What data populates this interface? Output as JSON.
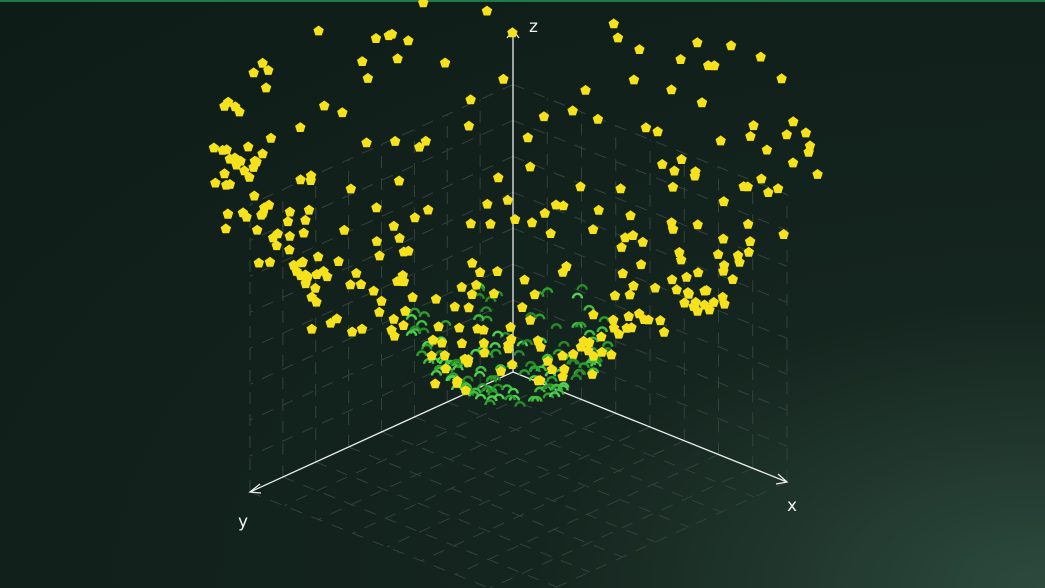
{
  "chart_data": {
    "type": "scatter",
    "projection": "3d",
    "title": "",
    "axes": {
      "x": {
        "label": "x"
      },
      "y": {
        "label": "y"
      },
      "z": {
        "label": "z"
      }
    },
    "grid": true,
    "legend": "none",
    "series": [
      {
        "marker": "pentagon",
        "color": "#f5e21c",
        "shape": "bowl-shell",
        "point_count": 300
      },
      {
        "marker": "arc",
        "color": "#3fbf3f",
        "shape": "small-cup-at-origin",
        "point_count": 150
      }
    ]
  }
}
